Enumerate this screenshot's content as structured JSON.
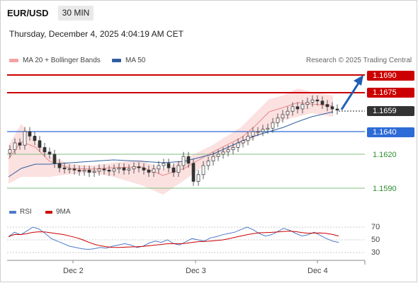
{
  "header": {
    "pair": "EUR/USD",
    "timeframe": "30 MIN",
    "datetime": "Thursday, December 4, 2025 4:04:19 AM CET"
  },
  "legend": [
    {
      "label": "MA 20 + Bollinger Bands",
      "color": "#f4a3a3"
    },
    {
      "label": "MA 50",
      "color": "#2f5f9f"
    }
  ],
  "credit": "Research © 2025 Trading Central",
  "levels": [
    {
      "value": "1.1690",
      "color": "#cc0000",
      "style": "filled"
    },
    {
      "value": "1.1675",
      "color": "#cc0000",
      "style": "filled"
    },
    {
      "value": "1.1659",
      "color": "#333333",
      "style": "filled"
    },
    {
      "value": "1.1640",
      "color": "#2d6bd6",
      "style": "filled"
    },
    {
      "value": "1.1620",
      "color": "#2e8b2e",
      "style": "plain"
    },
    {
      "value": "1.1590",
      "color": "#2e8b2e",
      "style": "plain"
    }
  ],
  "rsi": {
    "legend": [
      {
        "label": "RSI",
        "color": "#4d79c9"
      },
      {
        "label": "9MA",
        "color": "#cc0000"
      }
    ],
    "ticks": [
      "70",
      "50",
      "30"
    ],
    "line_values": [
      55,
      62,
      58,
      64,
      70,
      67,
      60,
      52,
      48,
      44,
      40,
      38,
      36,
      35,
      36,
      38,
      37,
      40,
      42,
      44,
      42,
      38,
      40,
      45,
      48,
      46,
      50,
      44,
      42,
      47,
      52,
      50,
      48,
      53,
      55,
      58,
      60,
      62,
      66,
      70,
      66,
      60,
      56,
      58,
      63,
      68,
      65,
      60,
      56,
      58,
      62,
      57,
      52,
      48,
      46
    ]
  },
  "x_axis": [
    "Dec 2",
    "Dec 3",
    "Dec 4"
  ],
  "chart_data": {
    "type": "line",
    "current_price": 1.1659,
    "ylim": [
      1.158,
      1.17
    ],
    "close": [
      1.1624,
      1.163,
      1.1628,
      1.164,
      1.1636,
      1.1632,
      1.1626,
      1.1622,
      1.162,
      1.1612,
      1.1608,
      1.1607,
      1.1607,
      1.1606,
      1.1605,
      1.1606,
      1.1604,
      1.1605,
      1.1607,
      1.1606,
      1.1605,
      1.1607,
      1.1608,
      1.1606,
      1.1607,
      1.1609,
      1.1608,
      1.1606,
      1.1604,
      1.1607,
      1.161,
      1.1612,
      1.1608,
      1.1604,
      1.161,
      1.1618,
      1.1612,
      1.1596,
      1.1602,
      1.161,
      1.1614,
      1.1618,
      1.162,
      1.1622,
      1.1624,
      1.1626,
      1.163,
      1.1632,
      1.1636,
      1.164,
      1.164,
      1.1642,
      1.1643,
      1.1648,
      1.1652,
      1.1655,
      1.1658,
      1.1662,
      1.166,
      1.1664,
      1.1666,
      1.1668,
      1.1667,
      1.1664,
      1.1662,
      1.166,
      1.1659
    ]
  }
}
